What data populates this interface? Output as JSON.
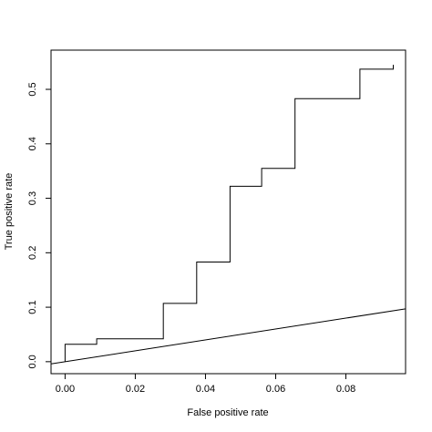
{
  "chart_data": {
    "type": "line",
    "title": "",
    "xlabel": "False positive rate",
    "ylabel": "True positive rate",
    "xlim": [
      -0.004,
      0.097
    ],
    "ylim": [
      -0.022,
      0.572
    ],
    "x_ticks": [
      0.0,
      0.02,
      0.04,
      0.06,
      0.08
    ],
    "x_tick_labels": [
      "0.00",
      "0.02",
      "0.04",
      "0.06",
      "0.08"
    ],
    "y_ticks": [
      0.0,
      0.1,
      0.2,
      0.3,
      0.4,
      0.5
    ],
    "y_tick_labels": [
      "0.0",
      "0.1",
      "0.2",
      "0.3",
      "0.4",
      "0.5"
    ],
    "grid": false,
    "series": [
      {
        "kind": "step",
        "x": [
          0.0,
          0.0,
          0.009,
          0.009,
          0.028,
          0.028,
          0.0375,
          0.0375,
          0.047,
          0.047,
          0.056,
          0.056,
          0.0655,
          0.0655,
          0.084,
          0.084,
          0.0935,
          0.0935
        ],
        "y": [
          0.0,
          0.032,
          0.032,
          0.042,
          0.042,
          0.107,
          0.107,
          0.183,
          0.183,
          0.322,
          0.322,
          0.355,
          0.355,
          0.483,
          0.483,
          0.537,
          0.537,
          0.545
        ]
      },
      {
        "kind": "diagonal",
        "x": [
          -0.004,
          0.097
        ],
        "y": [
          -0.004,
          0.097
        ]
      }
    ]
  }
}
